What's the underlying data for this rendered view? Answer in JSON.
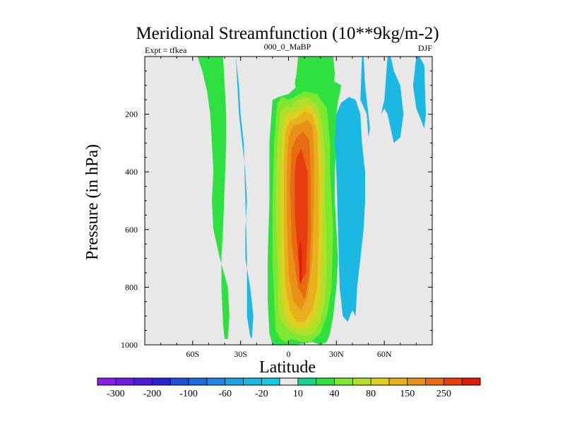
{
  "chart_data": {
    "type": "heatmap",
    "title": "Meridional Streamfunction (10**9kg/m-2)",
    "left_label": "Expt = tfkea",
    "center_label": "000_0_MaBP",
    "right_label": "DJF",
    "xlabel": "Latitude",
    "ylabel": "Pressure (in hPa)",
    "xlim": [
      -90,
      90
    ],
    "ylim": [
      1000,
      0
    ],
    "x_ticks": [
      {
        "value": -60,
        "label": "60S"
      },
      {
        "value": -30,
        "label": "30S"
      },
      {
        "value": 0,
        "label": "0"
      },
      {
        "value": 30,
        "label": "30N"
      },
      {
        "value": 60,
        "label": "60N"
      }
    ],
    "y_ticks": [
      {
        "value": 200,
        "label": "200"
      },
      {
        "value": 400,
        "label": "400"
      },
      {
        "value": 600,
        "label": "600"
      },
      {
        "value": 800,
        "label": "800"
      },
      {
        "value": 1000,
        "label": "1000"
      }
    ],
    "colorbar": {
      "levels": [
        -300,
        -250,
        -200,
        -150,
        -100,
        -80,
        -60,
        -40,
        -20,
        -10,
        10,
        20,
        40,
        60,
        80,
        100,
        150,
        200,
        250,
        300
      ],
      "tick_labels": [
        "-300",
        "-200",
        "-100",
        "-60",
        "-20",
        "10",
        "40",
        "80",
        "150",
        "250"
      ],
      "colors": [
        "#8a20e6",
        "#6a1ee0",
        "#4a1cd8",
        "#2626d2",
        "#1e52d6",
        "#1e6ae0",
        "#1e86e6",
        "#1ea2e4",
        "#1ab8e2",
        "#18c8e0",
        "#e8e8e8",
        "#18d090",
        "#2ee040",
        "#7ce830",
        "#b0e02a",
        "#e0d020",
        "#e8b01c",
        "#e89018",
        "#e86a12",
        "#e83e0e",
        "#e01a0a"
      ]
    },
    "fields": [
      {
        "class": 12,
        "lat": [
          -57,
          -54,
          -51,
          -49,
          -48,
          -47,
          -48,
          -47,
          -43,
          -38,
          -37,
          -38,
          -40,
          -41,
          -42,
          -42,
          -41,
          -40,
          -39,
          -39,
          -40,
          -41
        ],
        "p": [
          0,
          50,
          120,
          200,
          300,
          400,
          500,
          600,
          700,
          800,
          900,
          980,
          980,
          930,
          800,
          700,
          600,
          450,
          300,
          200,
          100,
          0
        ]
      },
      {
        "class": 12,
        "lat": [
          -10,
          -12,
          -13,
          -13,
          -12,
          -12,
          -10,
          -6,
          0,
          8,
          20,
          30,
          33,
          32,
          31,
          30,
          30,
          29,
          29,
          30,
          31,
          30,
          28,
          26,
          24,
          20,
          15,
          4
        ],
        "p": [
          1000,
          960,
          850,
          700,
          500,
          300,
          150,
          140,
          130,
          90,
          80,
          90,
          100,
          130,
          155,
          200,
          300,
          400,
          500,
          600,
          700,
          800,
          900,
          960,
          990,
          1000,
          990,
          1000
        ]
      },
      {
        "class": 12,
        "lat": [
          6,
          5,
          4,
          5,
          28,
          29,
          28
        ],
        "p": [
          0,
          60,
          90,
          130,
          125,
          60,
          0
        ]
      },
      {
        "class": 8,
        "lat": [
          -33,
          -32,
          -31,
          -29,
          -27,
          -26,
          -27,
          -27,
          -24,
          -22,
          -23,
          -24,
          -26,
          -26,
          -27,
          -28,
          -30,
          -31
        ],
        "p": [
          0,
          100,
          200,
          300,
          400,
          500,
          600,
          700,
          800,
          900,
          980,
          970,
          900,
          700,
          500,
          300,
          200,
          100
        ]
      },
      {
        "class": 8,
        "lat": [
          30,
          33,
          38,
          42,
          45,
          46,
          48,
          48,
          47,
          45,
          43,
          42,
          40,
          37,
          34,
          32,
          31,
          30,
          29
        ],
        "p": [
          200,
          160,
          140,
          150,
          200,
          300,
          400,
          500,
          600,
          700,
          800,
          900,
          880,
          920,
          900,
          800,
          600,
          400,
          300
        ]
      },
      {
        "class": 8,
        "lat": [
          45,
          46,
          47,
          48,
          49,
          50,
          51,
          50,
          49
        ],
        "p": [
          150,
          0,
          0,
          100,
          150,
          200,
          250,
          280,
          200
        ]
      },
      {
        "class": 8,
        "lat": [
          60,
          62,
          64,
          66,
          70,
          72,
          70,
          66,
          64,
          62,
          60,
          58
        ],
        "p": [
          150,
          0,
          0,
          50,
          100,
          200,
          280,
          300,
          250,
          200,
          180,
          200
        ]
      },
      {
        "class": 8,
        "lat": [
          80,
          82,
          85,
          86,
          85,
          83,
          80,
          78
        ],
        "p": [
          0,
          0,
          30,
          200,
          250,
          220,
          180,
          100
        ]
      },
      {
        "class": 13,
        "lat": [
          -8,
          -9,
          -10,
          -10,
          -9,
          -7,
          -4,
          0,
          4,
          10,
          18,
          24,
          26,
          26,
          27,
          28,
          27,
          24,
          20,
          14,
          8,
          2,
          -2,
          -5
        ],
        "p": [
          950,
          850,
          700,
          500,
          300,
          160,
          140,
          150,
          140,
          120,
          130,
          180,
          300,
          400,
          500,
          600,
          800,
          900,
          960,
          990,
          990,
          980,
          990,
          980
        ]
      },
      {
        "class": 14,
        "lat": [
          -6,
          -7,
          -8,
          -7,
          -5,
          -2,
          2,
          6,
          12,
          18,
          21,
          23,
          23,
          24,
          23,
          20,
          16,
          10,
          4,
          0,
          -3
        ],
        "p": [
          900,
          700,
          500,
          300,
          190,
          170,
          175,
          150,
          140,
          170,
          230,
          350,
          500,
          700,
          850,
          920,
          960,
          970,
          960,
          950,
          930
        ]
      },
      {
        "class": 15,
        "lat": [
          -4,
          -5,
          -5,
          -4,
          -2,
          3,
          8,
          14,
          18,
          20,
          21,
          21,
          20,
          17,
          12,
          6,
          1,
          -2
        ],
        "p": [
          850,
          650,
          450,
          270,
          200,
          195,
          175,
          170,
          210,
          300,
          450,
          650,
          820,
          900,
          940,
          945,
          930,
          900
        ]
      },
      {
        "class": 16,
        "lat": [
          -2,
          -3,
          -3,
          -2,
          1,
          5,
          10,
          15,
          18,
          19,
          19,
          18,
          15,
          10,
          5,
          1
        ],
        "p": [
          800,
          600,
          400,
          260,
          220,
          215,
          190,
          200,
          260,
          400,
          600,
          800,
          880,
          920,
          920,
          880
        ]
      },
      {
        "class": 17,
        "lat": [
          0,
          -1,
          -1,
          0,
          3,
          7,
          12,
          15,
          16,
          16,
          15,
          12,
          8,
          3
        ],
        "p": [
          750,
          550,
          380,
          280,
          240,
          235,
          220,
          240,
          330,
          500,
          700,
          830,
          880,
          850
        ]
      },
      {
        "class": 18,
        "lat": [
          2,
          1,
          2,
          5,
          9,
          13,
          14,
          14,
          13,
          10,
          6
        ],
        "p": [
          650,
          450,
          320,
          280,
          260,
          290,
          400,
          600,
          760,
          840,
          800
        ]
      },
      {
        "class": 19,
        "lat": [
          4,
          4,
          5,
          8,
          12,
          12,
          11,
          8,
          6
        ],
        "p": [
          550,
          400,
          350,
          320,
          400,
          600,
          750,
          780,
          700
        ]
      },
      {
        "class": 20,
        "lat": [
          7,
          6.5,
          7,
          8,
          8.5,
          8
        ],
        "p": [
          640,
          700,
          780,
          790,
          720,
          650
        ]
      }
    ]
  }
}
